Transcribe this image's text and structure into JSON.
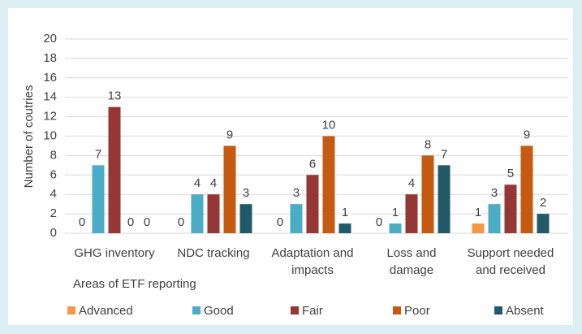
{
  "chart_data": {
    "type": "bar",
    "x_label": "Areas of ETF reporting",
    "y_label": "Number of coutries",
    "categories": [
      "GHG inventory",
      "NDC tracking",
      "Adaptation and impacts",
      "Loss and damage",
      "Support needed and received"
    ],
    "series": [
      {
        "name": "Advanced",
        "color": "#f79646",
        "values": [
          0,
          0,
          0,
          0,
          1
        ]
      },
      {
        "name": "Good",
        "color": "#4bacc6",
        "values": [
          7,
          4,
          3,
          1,
          3
        ]
      },
      {
        "name": "Fair",
        "color": "#953735",
        "values": [
          13,
          4,
          6,
          4,
          5
        ]
      },
      {
        "name": "Poor",
        "color": "#c55a11",
        "values": [
          0,
          9,
          10,
          8,
          9
        ]
      },
      {
        "name": "Absent",
        "color": "#215968",
        "values": [
          0,
          3,
          1,
          7,
          2
        ]
      }
    ],
    "ylim": [
      0,
      20
    ],
    "yticks": [
      0,
      2,
      4,
      6,
      8,
      10,
      12,
      14,
      16,
      18,
      20
    ],
    "grid": true,
    "legend": "bottom"
  }
}
